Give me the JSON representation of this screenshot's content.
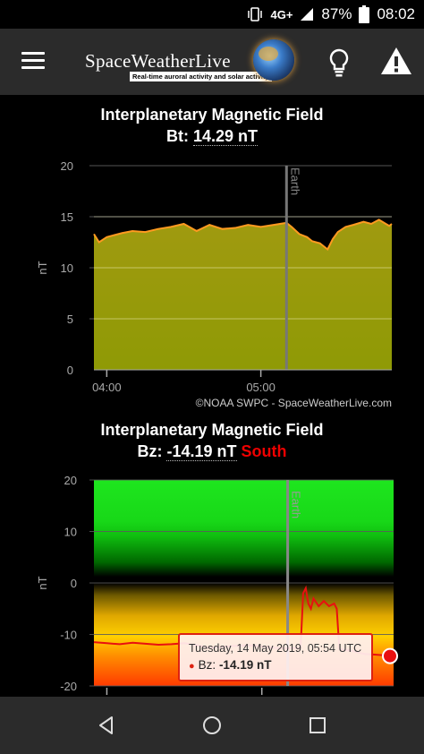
{
  "status_bar": {
    "network": "4G+",
    "battery": "87%",
    "time": "08:02"
  },
  "app_bar": {
    "logo_title": "SpaceWeatherLive",
    "logo_subtitle": "Real-time auroral activity and solar activity"
  },
  "bt_chart": {
    "title": "Interplanetary Magnetic Field",
    "value_label": "Bt:",
    "value": "14.29 nT",
    "credit": "©NOAA SWPC - SpaceWeatherLive.com",
    "earth_label": "Earth",
    "chart_data": {
      "type": "area",
      "ylabel": "nT",
      "ylim": [
        0,
        20
      ],
      "yticks": [
        "0",
        "5",
        "10",
        "15",
        "20"
      ],
      "xticks": [
        "04:00",
        "05:00"
      ],
      "xlim_minutes_after_0400": [
        -5,
        111
      ],
      "earth_marker_minutes_after_0400": 70,
      "x_minutes_after_0400": [
        -5,
        -3,
        0,
        3,
        6,
        10,
        15,
        20,
        25,
        30,
        35,
        40,
        45,
        50,
        55,
        60,
        65,
        70,
        72,
        75,
        78,
        80,
        83,
        86,
        88,
        90,
        93,
        96,
        100,
        103,
        106,
        110,
        111
      ],
      "y": [
        13.3,
        12.5,
        13.0,
        13.2,
        13.4,
        13.6,
        13.5,
        13.8,
        14.0,
        14.3,
        13.6,
        14.2,
        13.8,
        13.9,
        14.2,
        14.0,
        14.2,
        14.4,
        14.0,
        13.3,
        13.0,
        12.6,
        12.4,
        11.8,
        12.8,
        13.5,
        14.0,
        14.2,
        14.5,
        14.3,
        14.7,
        14.1,
        14.3
      ],
      "grid": true
    }
  },
  "bz_chart": {
    "title": "Interplanetary Magnetic Field",
    "value_label": "Bz:",
    "value": "-14.19 nT",
    "direction": "South",
    "earth_label": "Earth",
    "chart_data": {
      "type": "line",
      "ylabel": "nT",
      "ylim": [
        -20,
        20
      ],
      "yticks": [
        "20",
        "10",
        "0",
        "-10",
        "-20"
      ],
      "xlim_minutes_after_0400": [
        -5,
        111
      ],
      "earth_marker_minutes_after_0400": 70,
      "x_minutes_after_0400": [
        -5,
        0,
        5,
        10,
        15,
        20,
        25,
        30,
        35,
        40,
        45,
        50,
        55,
        60,
        65,
        70,
        75,
        76,
        77,
        78,
        79,
        80,
        82,
        84,
        86,
        88,
        89,
        90,
        92,
        95,
        98,
        100,
        103,
        106,
        110,
        111
      ],
      "y": [
        -11.5,
        -11.7,
        -11.9,
        -11.6,
        -11.8,
        -12.0,
        -11.9,
        -11.7,
        -12.1,
        -12.6,
        -12.4,
        -12.2,
        -12.1,
        -12.3,
        -12.6,
        -12.7,
        -12.6,
        -2.0,
        -1.0,
        -4.0,
        -5.0,
        -3.0,
        -4.5,
        -3.5,
        -4.5,
        -4.0,
        -5.0,
        -12.8,
        -13.0,
        -13.2,
        -13.6,
        -13.8,
        -13.9,
        -14.0,
        -14.1,
        -14.19
      ],
      "grid": true
    },
    "tooltip": {
      "datetime": "Tuesday, 14 May 2019, 05:54 UTC",
      "series_label": "Bz:",
      "value": "-14.19 nT"
    }
  },
  "colors": {
    "bt_fill": "#a09a10",
    "bt_line": "#ff9a20",
    "bz_line": "#e81010",
    "south": "#e00000",
    "app_bar": "#2b2b2b"
  }
}
